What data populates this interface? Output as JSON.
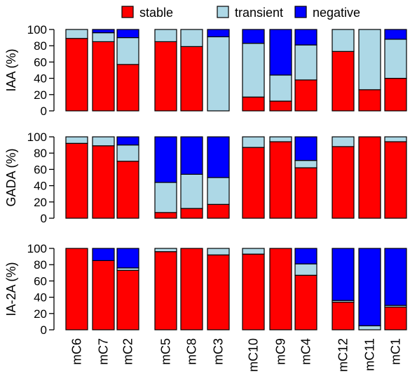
{
  "chart_data": {
    "type": "bar",
    "stacked": true,
    "legend": {
      "placement": "top",
      "entries": [
        {
          "label": "stable",
          "color": "#ff0000"
        },
        {
          "label": "transient",
          "color": "#add8e6"
        },
        {
          "label": "negative",
          "color": "#0000ff"
        }
      ]
    },
    "categories": [
      "mC6",
      "mC7",
      "mC2",
      "mC5",
      "mC8",
      "mC3",
      "mC10",
      "mC9",
      "mC4",
      "mC12",
      "mC11",
      "mC1"
    ],
    "groups": [
      3,
      3,
      3,
      3
    ],
    "ylim": [
      0,
      100
    ],
    "yticks": [
      "0",
      "20",
      "40",
      "60",
      "80",
      "100"
    ],
    "panels": [
      {
        "ylabel": "IAA (%)",
        "stable": [
          89,
          85,
          57,
          85,
          79,
          0,
          17,
          12,
          38,
          73,
          26,
          40
        ],
        "transient": [
          11,
          11,
          33,
          15,
          21,
          91,
          66,
          32,
          43,
          27,
          74,
          48
        ],
        "negative": [
          0,
          4,
          10,
          0,
          0,
          9,
          17,
          56,
          19,
          0,
          0,
          12
        ]
      },
      {
        "ylabel": "GADA (%)",
        "stable": [
          92,
          89,
          70,
          7,
          12,
          17,
          87,
          94,
          62,
          88,
          100,
          94
        ],
        "transient": [
          8,
          11,
          20,
          37,
          42,
          33,
          13,
          6,
          9,
          12,
          0,
          6
        ],
        "negative": [
          0,
          0,
          10,
          56,
          46,
          50,
          0,
          0,
          29,
          0,
          0,
          0
        ]
      },
      {
        "ylabel": "IA-2A (%)",
        "stable": [
          100,
          85,
          73,
          96,
          100,
          92,
          93,
          100,
          67,
          34,
          0,
          28
        ],
        "transient": [
          0,
          0,
          3,
          4,
          0,
          8,
          7,
          0,
          14,
          2,
          5,
          2
        ],
        "negative": [
          0,
          15,
          24,
          0,
          0,
          0,
          0,
          0,
          19,
          64,
          95,
          70
        ]
      }
    ]
  }
}
